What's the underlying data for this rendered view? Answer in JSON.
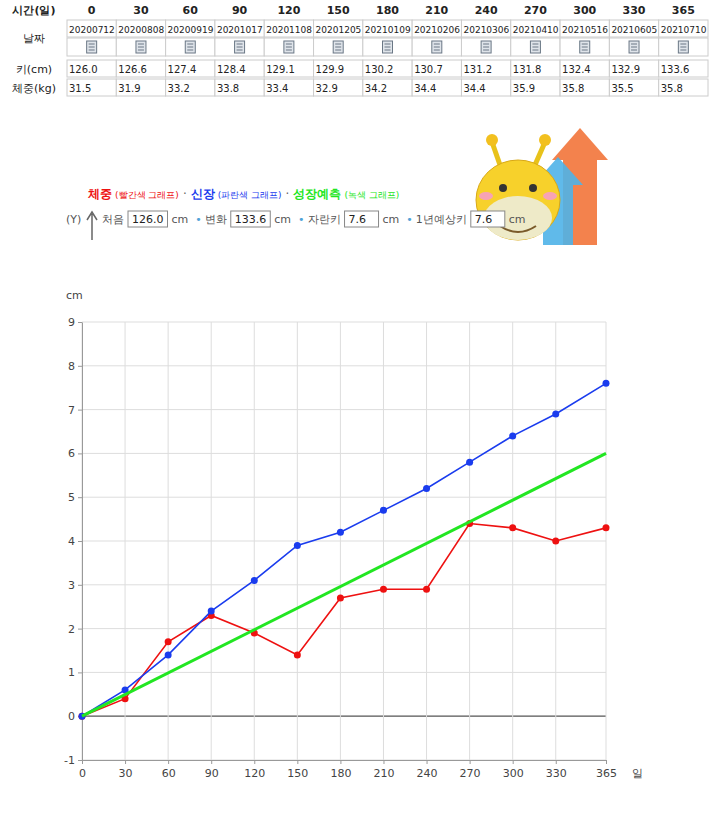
{
  "table": {
    "header": {
      "label": "시간(일)",
      "days": [
        0,
        30,
        60,
        90,
        120,
        150,
        180,
        210,
        240,
        270,
        300,
        330,
        365
      ]
    },
    "rows": [
      {
        "label": "날짜",
        "values": [
          "20200712",
          "20200808",
          "20200919",
          "20201017",
          "20201108",
          "20201205",
          "20210109",
          "20210206",
          "20210306",
          "20210410",
          "20210516",
          "20210605",
          "20210710"
        ]
      },
      {
        "label": "키(cm)",
        "values": [
          "126.0",
          "126.6",
          "127.4",
          "128.4",
          "129.1",
          "129.9",
          "130.2",
          "130.7",
          "131.2",
          "131.8",
          "132.4",
          "132.9",
          "133.6"
        ]
      },
      {
        "label": "체중(kg)",
        "values": [
          "31.5",
          "31.9",
          "33.2",
          "33.8",
          "33.4",
          "32.9",
          "34.2",
          "34.4",
          "34.4",
          "35.9",
          "35.8",
          "35.5",
          "35.8"
        ]
      }
    ]
  },
  "legend_separator": "·",
  "summary": {
    "axis_label": "(Y)",
    "bullet": "•",
    "items": [
      {
        "label": "처음",
        "value": "126.0",
        "unit": "cm"
      },
      {
        "label": "변화",
        "value": "133.6",
        "unit": "cm"
      },
      {
        "label": "자란키",
        "value": "7.6",
        "unit": "cm"
      },
      {
        "label": "1년예상키",
        "value": "7.6",
        "unit": "cm"
      }
    ]
  },
  "chart_data": {
    "type": "line",
    "x_label": "일",
    "y_label": "cm",
    "x": [
      0,
      30,
      60,
      90,
      120,
      150,
      180,
      210,
      240,
      270,
      300,
      330,
      365
    ],
    "series": [
      {
        "name": "체중",
        "description": "(빨간색 그래프)",
        "color": "#ee1111",
        "marker": "circle",
        "line_style": "solid",
        "values": [
          0,
          0.4,
          1.7,
          2.3,
          1.9,
          1.4,
          2.7,
          2.9,
          2.9,
          4.4,
          4.3,
          4.0,
          4.3
        ]
      },
      {
        "name": "신장",
        "description": "(파란색 그래프)",
        "color": "#1a3cee",
        "marker": "circle",
        "line_style": "solid",
        "values": [
          0,
          0.6,
          1.4,
          2.4,
          3.1,
          3.9,
          4.2,
          4.7,
          5.2,
          5.8,
          6.4,
          6.9,
          7.6
        ]
      },
      {
        "name": "성장예측",
        "description": "(녹색 그래프)",
        "color": "#22e622",
        "marker": "none",
        "line_style": "solid",
        "x": [
          0,
          365
        ],
        "values": [
          0,
          6
        ]
      }
    ],
    "xlim": [
      0,
      365
    ],
    "ylim": [
      -1,
      9
    ],
    "xticks": [
      0,
      30,
      60,
      90,
      120,
      150,
      180,
      210,
      240,
      270,
      300,
      330,
      365
    ],
    "yticks": [
      -1,
      0,
      1,
      2,
      3,
      4,
      5,
      6,
      7,
      8,
      9
    ],
    "grid": true,
    "legend": "top"
  }
}
